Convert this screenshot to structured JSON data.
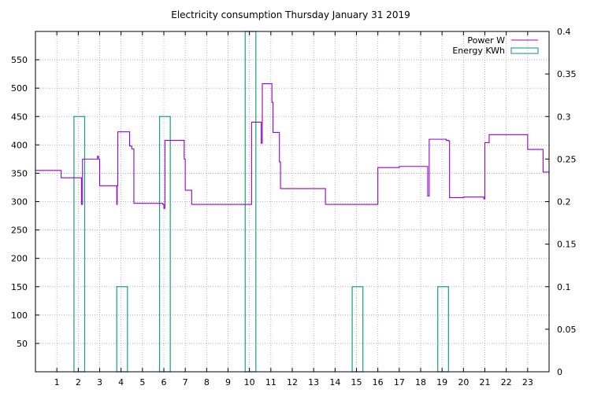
{
  "chart_data": {
    "type": "line",
    "title": "Electricity consumption Thursday January 31 2019",
    "xlabel": "",
    "ylabel": "",
    "y2label": "",
    "xlim": [
      0,
      24
    ],
    "ylim": [
      0,
      600
    ],
    "y2lim": [
      0,
      0.4
    ],
    "grid": true,
    "legend_position": "top-right",
    "x_ticks": [
      "1",
      "2",
      "3",
      "4",
      "5",
      "6",
      "7",
      "8",
      "9",
      "10",
      "11",
      "12",
      "13",
      "14",
      "15",
      "16",
      "17",
      "18",
      "19",
      "20",
      "21",
      "22",
      "23"
    ],
    "y_ticks": [
      "50",
      "100",
      "150",
      "200",
      "250",
      "300",
      "350",
      "400",
      "450",
      "500",
      "550"
    ],
    "y2_ticks": [
      "0",
      "0.05",
      "0.1",
      "0.15",
      "0.2",
      "0.25",
      "0.3",
      "0.35",
      "0.4"
    ],
    "series": [
      {
        "name": "Power W",
        "axis": "y",
        "style": "steps",
        "color": "#9400d3",
        "x": [
          0,
          1.2,
          2.0,
          2.15,
          2.2,
          2.8,
          2.9,
          2.95,
          3.0,
          3.8,
          3.82,
          3.85,
          4.4,
          4.5,
          4.6,
          5.5,
          5.95,
          6.0,
          6.05,
          6.1,
          6.9,
          6.95,
          7.0,
          7.3,
          8.5,
          10.0,
          10.1,
          10.5,
          10.55,
          10.6,
          11.0,
          11.05,
          11.1,
          11.35,
          11.4,
          11.45,
          12.5,
          13.5,
          13.55,
          15.5,
          15.55,
          16.0,
          17.0,
          18.0,
          18.3,
          18.33,
          18.35,
          18.4,
          19.2,
          19.3,
          19.35,
          20.0,
          20.9,
          20.95,
          21.0,
          21.2,
          22.0,
          22.4,
          23.0,
          23.7,
          23.72,
          24.0
        ],
        "y": [
          355,
          342,
          342,
          295,
          375,
          375,
          380,
          375,
          328,
          295,
          328,
          423,
          398,
          393,
          297,
          297,
          295,
          288,
          408,
          408,
          408,
          375,
          320,
          295,
          295,
          295,
          440,
          440,
          403,
          508,
          508,
          475,
          422,
          422,
          370,
          323,
          323,
          323,
          295,
          295,
          295,
          360,
          362,
          362,
          362,
          310,
          310,
          410,
          408,
          407,
          307,
          308,
          308,
          305,
          404,
          418,
          418,
          418,
          392,
          392,
          352,
          352
        ]
      },
      {
        "name": "Energy KWh",
        "axis": "y2",
        "style": "bars",
        "color": "#1b9e77",
        "bars": [
          {
            "x0": 1.8,
            "x1": 2.3,
            "value": 0.3
          },
          {
            "x0": 3.8,
            "x1": 4.3,
            "value": 0.1
          },
          {
            "x0": 5.8,
            "x1": 6.3,
            "value": 0.3
          },
          {
            "x0": 9.8,
            "x1": 10.3,
            "value": 0.4
          },
          {
            "x0": 14.8,
            "x1": 15.3,
            "value": 0.1
          },
          {
            "x0": 18.8,
            "x1": 19.3,
            "value": 0.1
          }
        ]
      }
    ]
  }
}
